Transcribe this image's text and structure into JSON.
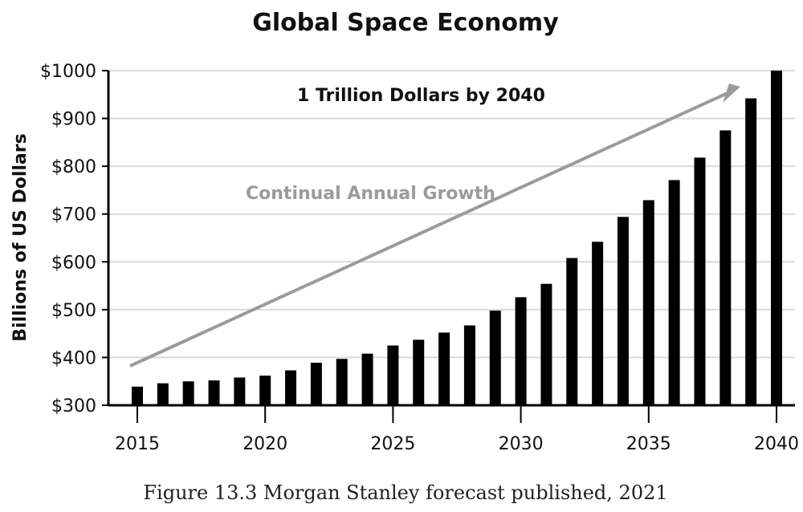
{
  "chart_data": {
    "type": "bar",
    "title": "Global Space Economy",
    "ylabel": "Billions of US Dollars",
    "xlabel": "",
    "ylim": [
      300,
      1000
    ],
    "yticks": [
      300,
      400,
      500,
      600,
      700,
      800,
      900,
      1000
    ],
    "ytick_labels": [
      "$300",
      "$400",
      "$500",
      "$600",
      "$700",
      "$800",
      "$900",
      "$1000"
    ],
    "xticks": [
      2015,
      2020,
      2025,
      2030,
      2035,
      2040
    ],
    "xtick_labels": [
      "2015",
      "2020",
      "2025",
      "2030",
      "2035",
      "2040"
    ],
    "categories": [
      2015,
      2016,
      2017,
      2018,
      2019,
      2020,
      2021,
      2022,
      2023,
      2024,
      2025,
      2026,
      2027,
      2028,
      2029,
      2030,
      2031,
      2032,
      2033,
      2034,
      2035,
      2036,
      2037,
      2038,
      2039,
      2040
    ],
    "values": [
      339,
      346,
      350,
      352,
      358,
      362,
      373,
      389,
      397,
      408,
      425,
      437,
      452,
      467,
      498,
      526,
      554,
      608,
      642,
      694,
      729,
      771,
      818,
      875,
      942,
      1000
    ],
    "grid": true,
    "bar_color": "#000000",
    "annotations": {
      "headline": "1 Trillion Dollars by 2040",
      "trend": "Continual Annual Growth",
      "trend_color": "#9b9b9b"
    }
  },
  "caption": "Figure 13.3 Morgan Stanley forecast published, 2021"
}
